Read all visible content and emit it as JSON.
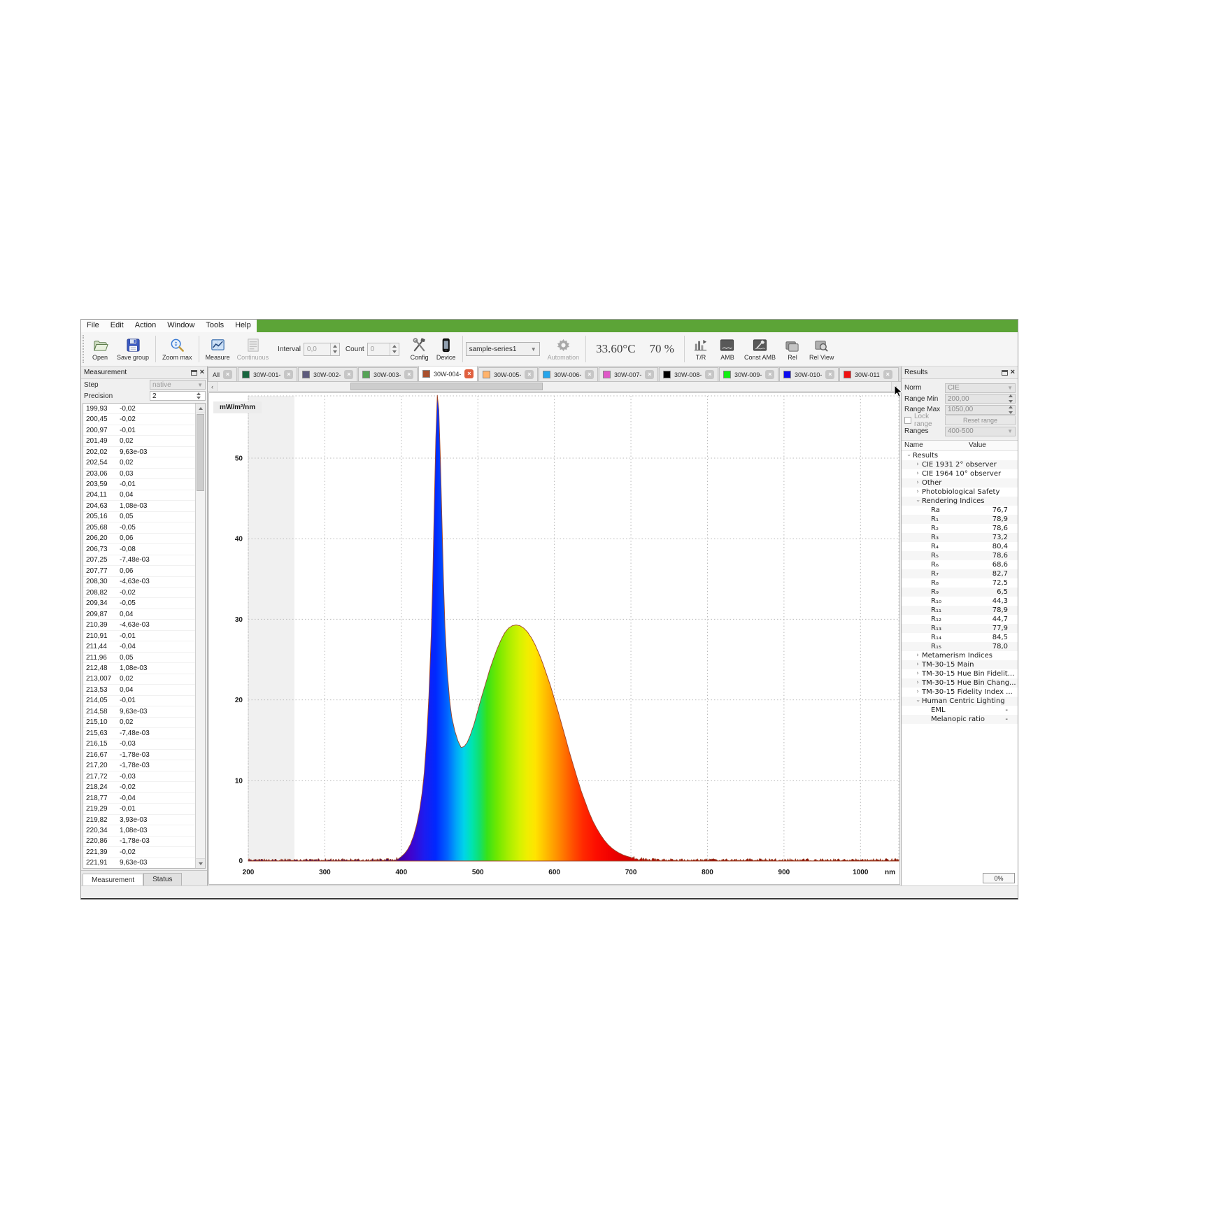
{
  "menu": {
    "items": [
      "File",
      "Edit",
      "Action",
      "Window",
      "Tools",
      "Help"
    ],
    "accent_green": "#5ca437"
  },
  "toolbar": {
    "open": "Open",
    "save_group": "Save group",
    "zoom_max": "Zoom max",
    "measure": "Measure",
    "continuous": "Continuous",
    "interval_label": "Interval",
    "interval_value": "0,0",
    "count_label": "Count",
    "count_value": "0",
    "config": "Config",
    "device": "Device",
    "series_select": "sample-series1",
    "automation": "Automation",
    "temperature": "33.60°C",
    "humidity": "70 %",
    "tr": "T/R",
    "amb": "AMB",
    "const_amb": "Const AMB",
    "rel": "Rel",
    "rel_view": "Rel View"
  },
  "measurement_panel": {
    "title": "Measurement",
    "step_label": "Step",
    "step_value": "native",
    "precision_label": "Precision",
    "precision_value": "2",
    "tabs": [
      "Measurement",
      "Status"
    ],
    "rows": [
      [
        "199,93",
        "-0,02"
      ],
      [
        "200,45",
        "-0,02"
      ],
      [
        "200,97",
        "-0,01"
      ],
      [
        "201,49",
        "0,02"
      ],
      [
        "202,02",
        "9,63e-03"
      ],
      [
        "202,54",
        "0,02"
      ],
      [
        "203,06",
        "0,03"
      ],
      [
        "203,59",
        "-0,01"
      ],
      [
        "204,11",
        "0,04"
      ],
      [
        "204,63",
        "1,08e-03"
      ],
      [
        "205,16",
        "0,05"
      ],
      [
        "205,68",
        "-0,05"
      ],
      [
        "206,20",
        "0,06"
      ],
      [
        "206,73",
        "-0,08"
      ],
      [
        "207,25",
        "-7,48e-03"
      ],
      [
        "207,77",
        "0,06"
      ],
      [
        "208,30",
        "-4,63e-03"
      ],
      [
        "208,82",
        "-0,02"
      ],
      [
        "209,34",
        "-0,05"
      ],
      [
        "209,87",
        "0,04"
      ],
      [
        "210,39",
        "-4,63e-03"
      ],
      [
        "210,91",
        "-0,01"
      ],
      [
        "211,44",
        "-0,04"
      ],
      [
        "211,96",
        "0,05"
      ],
      [
        "212,48",
        "1,08e-03"
      ],
      [
        "213,007",
        "0,02"
      ],
      [
        "213,53",
        "0,04"
      ],
      [
        "214,05",
        "-0,01"
      ],
      [
        "214,58",
        "9,63e-03"
      ],
      [
        "215,10",
        "0,02"
      ],
      [
        "215,63",
        "-7,48e-03"
      ],
      [
        "216,15",
        "-0,03"
      ],
      [
        "216,67",
        "-1,78e-03"
      ],
      [
        "217,20",
        "-1,78e-03"
      ],
      [
        "217,72",
        "-0,03"
      ],
      [
        "218,24",
        "-0,02"
      ],
      [
        "218,77",
        "-0,04"
      ],
      [
        "219,29",
        "-0,01"
      ],
      [
        "219,82",
        "3,93e-03"
      ],
      [
        "220,34",
        "1,08e-03"
      ],
      [
        "220,86",
        "-1,78e-03"
      ],
      [
        "221,39",
        "-0,02"
      ],
      [
        "221,91",
        "9,63e-03"
      ]
    ]
  },
  "series_tabs": {
    "all": {
      "label": "All"
    },
    "tabs": [
      {
        "label": "30W-001-",
        "color": "#17663e",
        "active": false
      },
      {
        "label": "30W-002-",
        "color": "#5d5b7d",
        "active": false
      },
      {
        "label": "30W-003-",
        "color": "#55a356",
        "active": false
      },
      {
        "label": "30W-004-",
        "color": "#a8502e",
        "active": true
      },
      {
        "label": "30W-005-",
        "color": "#ffb36b",
        "active": false
      },
      {
        "label": "30W-006-",
        "color": "#25a5ec",
        "active": false
      },
      {
        "label": "30W-007-",
        "color": "#e058c8",
        "active": false
      },
      {
        "label": "30W-008-",
        "color": "#000000",
        "active": false
      },
      {
        "label": "30W-009-",
        "color": "#11ef11",
        "active": false
      },
      {
        "label": "30W-010-",
        "color": "#0a0af0",
        "active": false
      },
      {
        "label": "30W-011",
        "color": "#f01111",
        "active": false
      }
    ]
  },
  "results_panel": {
    "title": "Results",
    "norm_label": "Norm",
    "norm_value": "CIE",
    "range_min_label": "Range Min",
    "range_min_value": "200,00",
    "range_max_label": "Range Max",
    "range_max_value": "1050,00",
    "lock_range_label": "Lock range",
    "reset_range_label": "Reset range",
    "ranges_label": "Ranges",
    "ranges_value": "400-500",
    "tree_header": {
      "name": "Name",
      "value": "Value"
    },
    "tree": [
      {
        "label": "Results",
        "value": "",
        "level": 0,
        "state": "expanded"
      },
      {
        "label": "CIE 1931 2° observer",
        "value": "",
        "level": 1,
        "state": "collapsed"
      },
      {
        "label": "CIE 1964 10° observer",
        "value": "",
        "level": 1,
        "state": "collapsed"
      },
      {
        "label": "Other",
        "value": "",
        "level": 1,
        "state": "collapsed"
      },
      {
        "label": "Photobiological Safety",
        "value": "",
        "level": 1,
        "state": "collapsed"
      },
      {
        "label": "Rendering Indices",
        "value": "",
        "level": 1,
        "state": "expanded"
      },
      {
        "label": "Ra",
        "value": "76,7",
        "level": 2,
        "state": "leaf"
      },
      {
        "label": "R₁",
        "value": "78,9",
        "level": 2,
        "state": "leaf"
      },
      {
        "label": "R₂",
        "value": "78,6",
        "level": 2,
        "state": "leaf"
      },
      {
        "label": "R₃",
        "value": "73,2",
        "level": 2,
        "state": "leaf"
      },
      {
        "label": "R₄",
        "value": "80,4",
        "level": 2,
        "state": "leaf"
      },
      {
        "label": "R₅",
        "value": "78,6",
        "level": 2,
        "state": "leaf"
      },
      {
        "label": "R₆",
        "value": "68,6",
        "level": 2,
        "state": "leaf"
      },
      {
        "label": "R₇",
        "value": "82,7",
        "level": 2,
        "state": "leaf"
      },
      {
        "label": "R₈",
        "value": "72,5",
        "level": 2,
        "state": "leaf"
      },
      {
        "label": "R₉",
        "value": "6,5",
        "level": 2,
        "state": "leaf"
      },
      {
        "label": "R₁₀",
        "value": "44,3",
        "level": 2,
        "state": "leaf"
      },
      {
        "label": "R₁₁",
        "value": "78,9",
        "level": 2,
        "state": "leaf"
      },
      {
        "label": "R₁₂",
        "value": "44,7",
        "level": 2,
        "state": "leaf"
      },
      {
        "label": "R₁₃",
        "value": "77,9",
        "level": 2,
        "state": "leaf"
      },
      {
        "label": "R₁₄",
        "value": "84,5",
        "level": 2,
        "state": "leaf"
      },
      {
        "label": "R₁₅",
        "value": "78,0",
        "level": 2,
        "state": "leaf"
      },
      {
        "label": "Metamerism Indices",
        "value": "",
        "level": 1,
        "state": "collapsed"
      },
      {
        "label": "TM-30-15 Main",
        "value": "",
        "level": 1,
        "state": "collapsed"
      },
      {
        "label": "TM-30-15 Hue Bin Fidelit...",
        "value": "",
        "level": 1,
        "state": "collapsed"
      },
      {
        "label": "TM-30-15 Hue Bin Chang...",
        "value": "",
        "level": 1,
        "state": "collapsed"
      },
      {
        "label": "TM-30-15 Fidelity Index ...",
        "value": "",
        "level": 1,
        "state": "collapsed"
      },
      {
        "label": "Human Centric Lighting",
        "value": "",
        "level": 1,
        "state": "expanded"
      },
      {
        "label": "EML",
        "value": "-",
        "level": 2,
        "state": "leaf"
      },
      {
        "label": "Melanopic ratio",
        "value": "-",
        "level": 2,
        "state": "leaf"
      }
    ]
  },
  "status_bar": {
    "progress": "0%"
  },
  "chart_data": {
    "type": "area",
    "title": "",
    "ylabel": "mW/m²/nm",
    "xlabel": "",
    "x_unit": "nm",
    "x_ticks": [
      200,
      300,
      400,
      500,
      600,
      700,
      800,
      900,
      1000
    ],
    "y_ticks": [
      0,
      10,
      20,
      30,
      40,
      50
    ],
    "xlim": [
      200,
      1050
    ],
    "ylim": [
      0,
      58.5
    ],
    "grid": "dotted",
    "series_name": "30W-004",
    "series_color": "#a0452a",
    "points": [
      [
        200,
        0.1
      ],
      [
        250,
        0.1
      ],
      [
        300,
        0.1
      ],
      [
        350,
        0.1
      ],
      [
        380,
        0.12
      ],
      [
        390,
        0.18
      ],
      [
        396,
        0.3
      ],
      [
        400,
        0.55
      ],
      [
        404,
        0.9
      ],
      [
        408,
        1.4
      ],
      [
        412,
        2.1
      ],
      [
        416,
        3.1
      ],
      [
        420,
        4.5
      ],
      [
        424,
        6.4
      ],
      [
        427,
        8.4
      ],
      [
        430,
        11
      ],
      [
        433,
        15
      ],
      [
        436,
        20.5
      ],
      [
        439,
        28
      ],
      [
        441,
        35
      ],
      [
        443,
        44
      ],
      [
        445,
        52.5
      ],
      [
        447,
        57.8
      ],
      [
        449,
        56
      ],
      [
        451,
        50
      ],
      [
        453,
        42.5
      ],
      [
        455,
        35
      ],
      [
        457,
        29
      ],
      [
        460,
        23.5
      ],
      [
        463,
        20
      ],
      [
        466,
        17.8
      ],
      [
        470,
        16.1
      ],
      [
        474,
        14.9
      ],
      [
        478,
        14.1
      ],
      [
        482,
        14.2
      ],
      [
        486,
        14.7
      ],
      [
        490,
        15.6
      ],
      [
        495,
        17
      ],
      [
        500,
        18.7
      ],
      [
        505,
        20.4
      ],
      [
        510,
        22
      ],
      [
        515,
        23.6
      ],
      [
        520,
        25
      ],
      [
        525,
        26.3
      ],
      [
        530,
        27.4
      ],
      [
        535,
        28.3
      ],
      [
        540,
        28.9
      ],
      [
        545,
        29.2
      ],
      [
        550,
        29.3
      ],
      [
        555,
        29.2
      ],
      [
        560,
        28.9
      ],
      [
        565,
        28.4
      ],
      [
        570,
        27.7
      ],
      [
        575,
        26.8
      ],
      [
        580,
        25.7
      ],
      [
        585,
        24.5
      ],
      [
        590,
        23.1
      ],
      [
        595,
        21.7
      ],
      [
        600,
        20.1
      ],
      [
        605,
        18.5
      ],
      [
        610,
        16.8
      ],
      [
        615,
        15.1
      ],
      [
        620,
        13.4
      ],
      [
        625,
        11.8
      ],
      [
        630,
        10.2
      ],
      [
        635,
        8.7
      ],
      [
        640,
        7.4
      ],
      [
        645,
        6.1
      ],
      [
        650,
        5.0
      ],
      [
        655,
        4.1
      ],
      [
        660,
        3.3
      ],
      [
        665,
        2.6
      ],
      [
        670,
        2.05
      ],
      [
        675,
        1.6
      ],
      [
        680,
        1.25
      ],
      [
        685,
        0.97
      ],
      [
        690,
        0.75
      ],
      [
        695,
        0.58
      ],
      [
        700,
        0.45
      ],
      [
        710,
        0.28
      ],
      [
        720,
        0.19
      ],
      [
        730,
        0.14
      ],
      [
        740,
        0.12
      ],
      [
        760,
        0.1
      ],
      [
        800,
        0.1
      ],
      [
        850,
        0.1
      ],
      [
        900,
        0.1
      ],
      [
        950,
        0.1
      ],
      [
        1000,
        0.1
      ],
      [
        1050,
        0.1
      ]
    ],
    "spectrum_gradient": [
      {
        "wl": 380,
        "color": "#30006a"
      },
      {
        "wl": 410,
        "color": "#4400c8"
      },
      {
        "wl": 430,
        "color": "#1c1cf0"
      },
      {
        "wl": 445,
        "color": "#0028ff"
      },
      {
        "wl": 460,
        "color": "#0064ff"
      },
      {
        "wl": 472,
        "color": "#00a8f8"
      },
      {
        "wl": 482,
        "color": "#00d4e8"
      },
      {
        "wl": 492,
        "color": "#00e4b0"
      },
      {
        "wl": 502,
        "color": "#10e070"
      },
      {
        "wl": 512,
        "color": "#38e218"
      },
      {
        "wl": 525,
        "color": "#70e800"
      },
      {
        "wl": 540,
        "color": "#a8ee00"
      },
      {
        "wl": 555,
        "color": "#d6f200"
      },
      {
        "wl": 565,
        "color": "#f0ee00"
      },
      {
        "wl": 575,
        "color": "#ffe400"
      },
      {
        "wl": 585,
        "color": "#ffc800"
      },
      {
        "wl": 595,
        "color": "#ffaa00"
      },
      {
        "wl": 605,
        "color": "#ff8c00"
      },
      {
        "wl": 615,
        "color": "#ff6c00"
      },
      {
        "wl": 625,
        "color": "#ff4c00"
      },
      {
        "wl": 638,
        "color": "#ff2800"
      },
      {
        "wl": 655,
        "color": "#fc0d00"
      },
      {
        "wl": 675,
        "color": "#f00000"
      },
      {
        "wl": 700,
        "color": "#d40000"
      },
      {
        "wl": 730,
        "color": "#b00000"
      },
      {
        "wl": 770,
        "color": "#900000"
      },
      {
        "wl": 1050,
        "color": "#7a0000"
      }
    ]
  }
}
